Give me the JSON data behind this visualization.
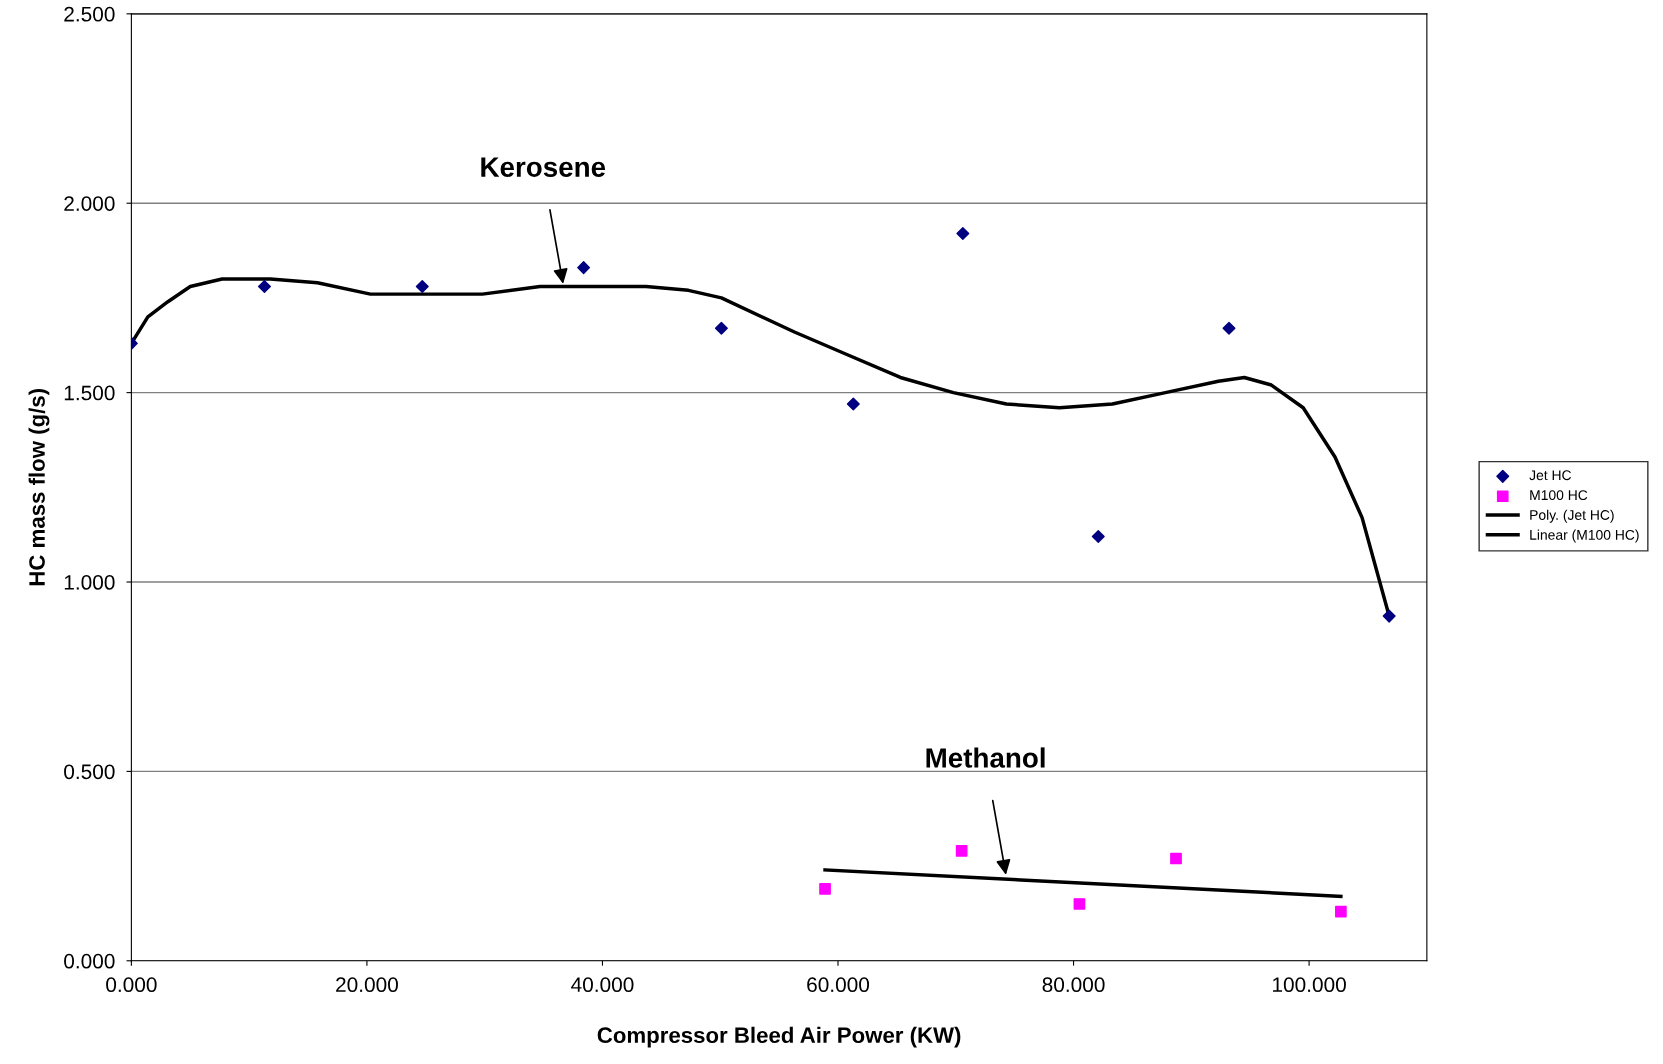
{
  "chart_data": {
    "type": "scatter",
    "xlabel": "Compressor Bleed Air Power (KW)",
    "ylabel": "HC mass flow (g/s)",
    "xlim": [
      0,
      110
    ],
    "ylim": [
      0,
      2.5
    ],
    "xticks": [
      {
        "value": 0,
        "label": "0.000"
      },
      {
        "value": 20,
        "label": "20.000"
      },
      {
        "value": 40,
        "label": "40.000"
      },
      {
        "value": 60,
        "label": "60.000"
      },
      {
        "value": 80,
        "label": "80.000"
      },
      {
        "value": 100,
        "label": "100.000"
      }
    ],
    "yticks": [
      {
        "value": 0,
        "label": "0.000"
      },
      {
        "value": 0.5,
        "label": "0.500"
      },
      {
        "value": 1,
        "label": "1.000"
      },
      {
        "value": 1.5,
        "label": "1.500"
      },
      {
        "value": 2,
        "label": "2.000"
      },
      {
        "value": 2.5,
        "label": "2.500"
      }
    ],
    "grid": "y",
    "legend": "right",
    "series": [
      {
        "name": "Jet HC",
        "marker": "diamond",
        "color": "#000080",
        "x": [
          0,
          11.3,
          24.7,
          38.4,
          50.1,
          61.3,
          70.6,
          82.1,
          93.2,
          106.8
        ],
        "values": [
          1.63,
          1.78,
          1.78,
          1.83,
          1.67,
          1.47,
          1.92,
          1.12,
          1.67,
          0.91
        ]
      },
      {
        "name": "M100 HC",
        "marker": "square",
        "color": "#ff00ff",
        "x": [
          58.9,
          70.5,
          80.5,
          88.7,
          102.7
        ],
        "values": [
          0.19,
          0.29,
          0.15,
          0.27,
          0.13
        ]
      },
      {
        "name": "Poly. (Jet HC)",
        "type": "line",
        "marker": "none",
        "color": "#000000",
        "x": [
          0,
          1.4,
          3.1,
          5.0,
          7.7,
          11.8,
          15.8,
          20.3,
          24.8,
          29.8,
          34.7,
          39.2,
          43.7,
          47.3,
          50.1,
          56.3,
          60.8,
          65.3,
          69.8,
          74.3,
          78.8,
          83.3,
          87.8,
          92.3,
          94.5,
          96.8,
          99.5,
          102.2,
          104.5,
          106.8
        ],
        "values": [
          1.63,
          1.7,
          1.74,
          1.78,
          1.8,
          1.8,
          1.79,
          1.76,
          1.76,
          1.76,
          1.78,
          1.78,
          1.78,
          1.77,
          1.75,
          1.66,
          1.6,
          1.54,
          1.5,
          1.47,
          1.46,
          1.47,
          1.5,
          1.53,
          1.54,
          1.52,
          1.46,
          1.33,
          1.17,
          0.91
        ]
      },
      {
        "name": "Linear (M100 HC)",
        "type": "line",
        "marker": "none",
        "color": "#000000",
        "x": [
          58.9,
          102.7
        ],
        "values": [
          0.24,
          0.17
        ]
      }
    ],
    "annotations": [
      {
        "text": "Kerosene",
        "x": 36.7,
        "y": 1.78
      },
      {
        "text": "Methanol",
        "x": 74.3,
        "y": 0.22
      }
    ]
  }
}
